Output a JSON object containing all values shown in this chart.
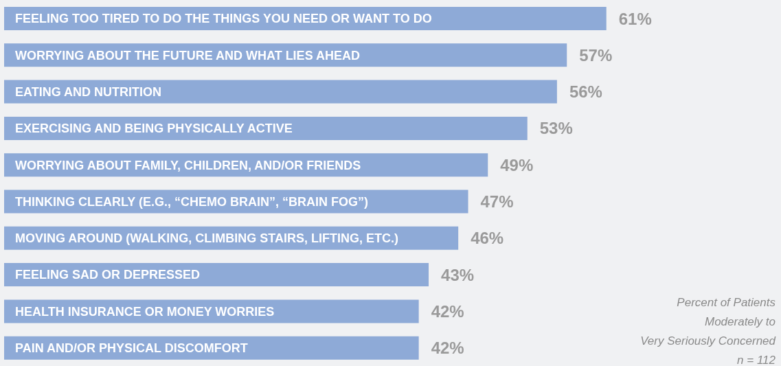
{
  "chart_data": {
    "type": "bar",
    "orientation": "horizontal",
    "categories": [
      "FEELING TOO TIRED TO DO THE THINGS YOU NEED OR WANT TO DO",
      "WORRYING ABOUT THE FUTURE AND WHAT LIES AHEAD",
      "EATING AND NUTRITION",
      "EXERCISING AND BEING PHYSICALLY ACTIVE",
      "WORRYING ABOUT FAMILY, CHILDREN, AND/OR FRIENDS",
      "THINKING CLEARLY (E.G., “CHEMO BRAIN”, “BRAIN FOG”)",
      "MOVING AROUND (WALKING, CLIMBING STAIRS, LIFTING, ETC.)",
      "FEELING SAD OR DEPRESSED",
      "HEALTH INSURANCE OR MONEY WORRIES",
      "PAIN AND/OR PHYSICAL DISCOMFORT"
    ],
    "values": [
      61,
      57,
      56,
      53,
      49,
      47,
      46,
      43,
      42,
      42
    ],
    "value_labels": [
      "61%",
      "57%",
      "56%",
      "53%",
      "49%",
      "47%",
      "46%",
      "43%",
      "42%",
      "42%"
    ],
    "color": "#8eaad7",
    "annotations": [
      "Percent of Patients",
      "Moderately to",
      "Very Seriously Concerned",
      "n = 112"
    ]
  }
}
